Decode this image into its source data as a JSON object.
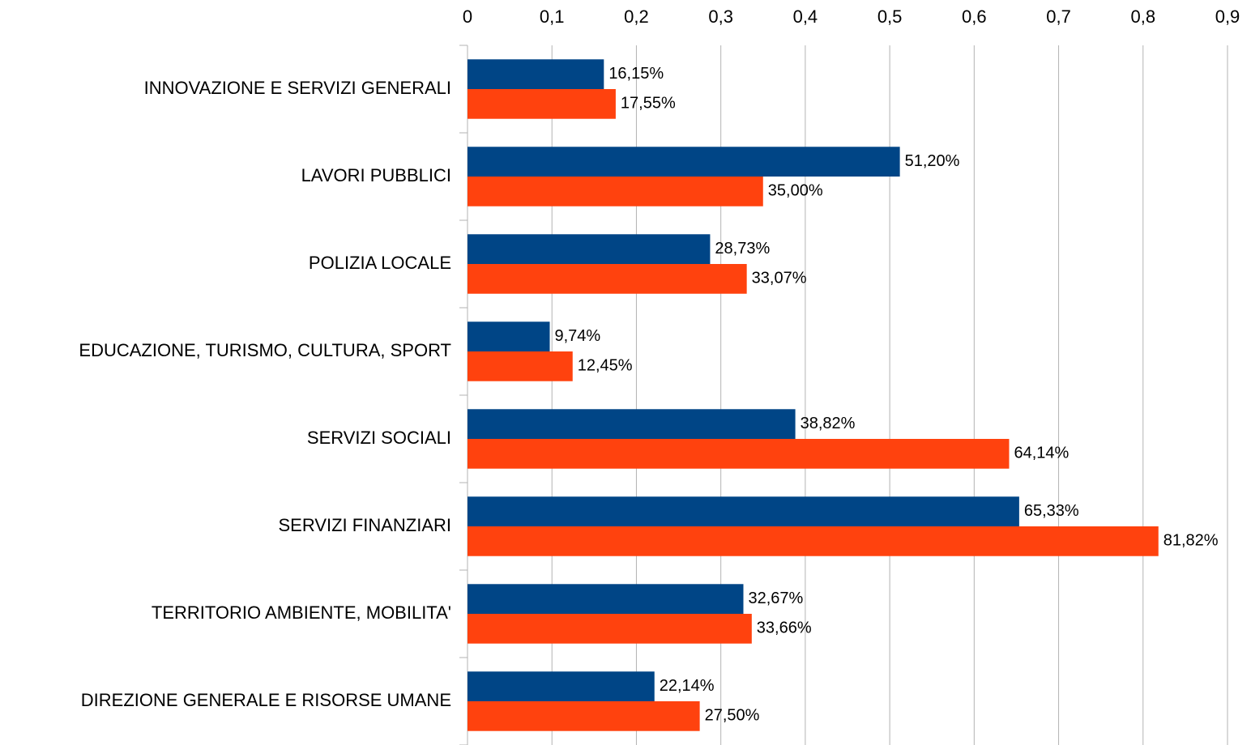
{
  "chart_data": {
    "type": "barh",
    "categories": [
      "INNOVAZIONE E SERVIZI GENERALI",
      "LAVORI PUBBLICI",
      "POLIZIA LOCALE",
      "EDUCAZIONE, TURISMO, CULTURA, SPORT",
      "SERVIZI SOCIALI",
      "SERVIZI FINANZIARI",
      "TERRITORIO AMBIENTE, MOBILITA'",
      "DIREZIONE GENERALE E RISORSE UMANE"
    ],
    "series": [
      {
        "color": "#004586",
        "values": [
          0.1615,
          0.512,
          0.2873,
          0.0974,
          0.3882,
          0.6533,
          0.3267,
          0.2214
        ],
        "value_labels": [
          "16,15%",
          "51,20%",
          "28,73%",
          "9,74%",
          "38,82%",
          "65,33%",
          "32,67%",
          "22,14%"
        ]
      },
      {
        "color": "#ff420e",
        "values": [
          0.1755,
          0.35,
          0.3307,
          0.1245,
          0.6414,
          0.8182,
          0.3366,
          0.275
        ],
        "value_labels": [
          "17,55%",
          "35,00%",
          "33,07%",
          "12,45%",
          "64,14%",
          "81,82%",
          "33,66%",
          "27,50%"
        ]
      }
    ],
    "xlim": [
      0,
      0.9
    ],
    "xticks": [
      0,
      {
        "value": 0.1,
        "label": "0,1"
      },
      {
        "value": 0.2,
        "label": "0,2"
      },
      {
        "value": 0.3,
        "label": "0,3"
      },
      {
        "value": 0.4,
        "label": "0,4"
      },
      {
        "value": 0.5,
        "label": "0,5"
      },
      {
        "value": 0.6,
        "label": "0,6"
      },
      {
        "value": 0.7,
        "label": "0,7"
      },
      {
        "value": 0.8,
        "label": "0,8"
      },
      {
        "value": 0.9,
        "label": "0,9"
      }
    ],
    "grid": true
  }
}
